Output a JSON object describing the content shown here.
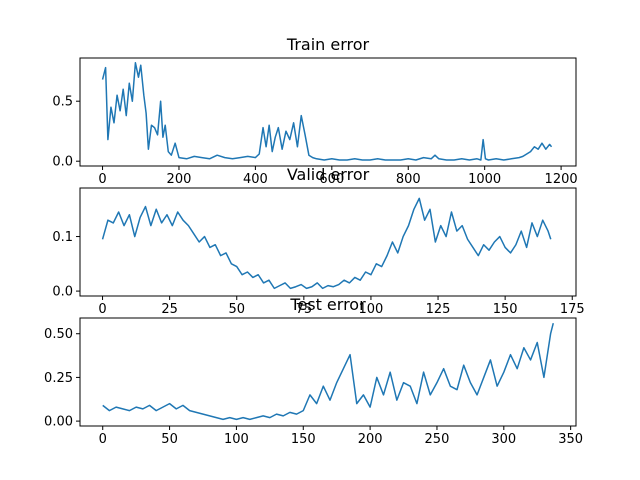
{
  "chart_data": [
    {
      "type": "line",
      "title": "Train error",
      "xlabel": "",
      "ylabel": "",
      "xlim": [
        -59,
        1239
      ],
      "ylim": [
        -0.04,
        0.86
      ],
      "xticks": [
        0,
        200,
        400,
        600,
        800,
        1000,
        1200
      ],
      "yticks": [
        0.0,
        0.5
      ],
      "ytick_labels": [
        "0.0",
        "0.5"
      ],
      "grid": false,
      "color": "#1f77b4",
      "series": [
        {
          "x": [
            0,
            8,
            14,
            22,
            30,
            38,
            46,
            54,
            62,
            70,
            78,
            86,
            94,
            100,
            108,
            114,
            120,
            128,
            136,
            144,
            152,
            158,
            164,
            172,
            180,
            190,
            200,
            220,
            240,
            260,
            280,
            300,
            320,
            340,
            360,
            380,
            400,
            410,
            420,
            428,
            436,
            444,
            452,
            460,
            470,
            480,
            490,
            500,
            510,
            520,
            530,
            540,
            550,
            560,
            580,
            600,
            620,
            640,
            660,
            680,
            700,
            720,
            740,
            760,
            780,
            800,
            820,
            840,
            860,
            870,
            880,
            900,
            920,
            940,
            960,
            980,
            990,
            996,
            1002,
            1010,
            1030,
            1050,
            1070,
            1090,
            1100,
            1110,
            1120,
            1130,
            1140,
            1150,
            1160,
            1170,
            1175
          ],
          "values": [
            0.68,
            0.78,
            0.18,
            0.45,
            0.32,
            0.55,
            0.42,
            0.6,
            0.38,
            0.65,
            0.5,
            0.82,
            0.7,
            0.8,
            0.55,
            0.4,
            0.1,
            0.3,
            0.28,
            0.22,
            0.5,
            0.2,
            0.3,
            0.08,
            0.05,
            0.15,
            0.03,
            0.02,
            0.04,
            0.03,
            0.02,
            0.05,
            0.03,
            0.02,
            0.03,
            0.04,
            0.03,
            0.06,
            0.28,
            0.12,
            0.3,
            0.08,
            0.2,
            0.28,
            0.1,
            0.25,
            0.18,
            0.32,
            0.12,
            0.38,
            0.22,
            0.05,
            0.03,
            0.02,
            0.01,
            0.02,
            0.01,
            0.01,
            0.02,
            0.01,
            0.01,
            0.02,
            0.01,
            0.01,
            0.01,
            0.02,
            0.01,
            0.03,
            0.02,
            0.05,
            0.02,
            0.01,
            0.01,
            0.02,
            0.01,
            0.02,
            0.01,
            0.18,
            0.02,
            0.01,
            0.02,
            0.01,
            0.02,
            0.03,
            0.04,
            0.06,
            0.08,
            0.12,
            0.1,
            0.15,
            0.1,
            0.14,
            0.12
          ]
        }
      ]
    },
    {
      "type": "line",
      "title": "Valid error",
      "xlabel": "",
      "ylabel": "",
      "xlim": [
        -8.4,
        176.4
      ],
      "ylim": [
        -0.009,
        0.189
      ],
      "xticks": [
        0,
        25,
        50,
        75,
        100,
        125,
        150,
        175
      ],
      "yticks": [
        0.0,
        0.1
      ],
      "ytick_labels": [
        "0.0",
        "0.1"
      ],
      "grid": false,
      "color": "#1f77b4",
      "series": [
        {
          "x": [
            0,
            2,
            4,
            6,
            8,
            10,
            12,
            14,
            16,
            18,
            20,
            22,
            24,
            26,
            28,
            30,
            32,
            34,
            36,
            38,
            40,
            42,
            44,
            46,
            48,
            50,
            52,
            54,
            56,
            58,
            60,
            62,
            64,
            66,
            68,
            70,
            72,
            74,
            76,
            78,
            80,
            82,
            84,
            86,
            88,
            90,
            92,
            94,
            96,
            98,
            100,
            102,
            104,
            106,
            108,
            110,
            112,
            114,
            116,
            118,
            120,
            122,
            124,
            126,
            128,
            130,
            132,
            134,
            136,
            138,
            140,
            142,
            144,
            146,
            148,
            150,
            152,
            154,
            156,
            158,
            160,
            162,
            164,
            166,
            167
          ],
          "values": [
            0.095,
            0.13,
            0.125,
            0.145,
            0.12,
            0.14,
            0.1,
            0.135,
            0.155,
            0.12,
            0.15,
            0.125,
            0.14,
            0.12,
            0.145,
            0.13,
            0.12,
            0.105,
            0.09,
            0.1,
            0.08,
            0.085,
            0.065,
            0.07,
            0.05,
            0.045,
            0.03,
            0.035,
            0.025,
            0.03,
            0.015,
            0.02,
            0.005,
            0.01,
            0.015,
            0.005,
            0.008,
            0.012,
            0.005,
            0.008,
            0.015,
            0.005,
            0.01,
            0.008,
            0.012,
            0.02,
            0.015,
            0.025,
            0.02,
            0.035,
            0.03,
            0.05,
            0.045,
            0.065,
            0.09,
            0.07,
            0.1,
            0.12,
            0.15,
            0.17,
            0.13,
            0.15,
            0.09,
            0.12,
            0.1,
            0.145,
            0.11,
            0.12,
            0.095,
            0.08,
            0.065,
            0.085,
            0.075,
            0.09,
            0.1,
            0.08,
            0.07,
            0.085,
            0.11,
            0.08,
            0.125,
            0.1,
            0.13,
            0.11,
            0.095
          ]
        }
      ]
    },
    {
      "type": "line",
      "title": "Test error",
      "xlabel": "",
      "ylabel": "",
      "xlim": [
        -17,
        354
      ],
      "ylim": [
        -0.028,
        0.59
      ],
      "xticks": [
        0,
        50,
        100,
        150,
        200,
        250,
        300,
        350
      ],
      "yticks": [
        0.0,
        0.25,
        0.5
      ],
      "ytick_labels": [
        "0.00",
        "0.25",
        "0.50"
      ],
      "grid": false,
      "color": "#1f77b4",
      "series": [
        {
          "x": [
            0,
            5,
            10,
            15,
            20,
            25,
            30,
            35,
            40,
            45,
            50,
            55,
            60,
            65,
            70,
            75,
            80,
            85,
            90,
            95,
            100,
            105,
            110,
            115,
            120,
            125,
            130,
            135,
            140,
            145,
            150,
            155,
            160,
            165,
            170,
            175,
            180,
            185,
            190,
            195,
            200,
            205,
            210,
            215,
            220,
            225,
            230,
            235,
            240,
            245,
            250,
            255,
            260,
            265,
            270,
            275,
            280,
            285,
            290,
            295,
            300,
            305,
            310,
            315,
            320,
            325,
            330,
            335,
            337
          ],
          "values": [
            0.09,
            0.06,
            0.08,
            0.07,
            0.06,
            0.08,
            0.07,
            0.09,
            0.06,
            0.08,
            0.1,
            0.07,
            0.09,
            0.06,
            0.05,
            0.04,
            0.03,
            0.02,
            0.01,
            0.02,
            0.01,
            0.02,
            0.01,
            0.02,
            0.03,
            0.02,
            0.04,
            0.03,
            0.05,
            0.04,
            0.06,
            0.15,
            0.1,
            0.2,
            0.12,
            0.22,
            0.3,
            0.38,
            0.1,
            0.15,
            0.08,
            0.25,
            0.15,
            0.28,
            0.12,
            0.22,
            0.2,
            0.1,
            0.28,
            0.15,
            0.22,
            0.3,
            0.2,
            0.18,
            0.32,
            0.22,
            0.15,
            0.25,
            0.35,
            0.2,
            0.28,
            0.38,
            0.3,
            0.42,
            0.35,
            0.45,
            0.25,
            0.5,
            0.56
          ]
        }
      ]
    }
  ]
}
